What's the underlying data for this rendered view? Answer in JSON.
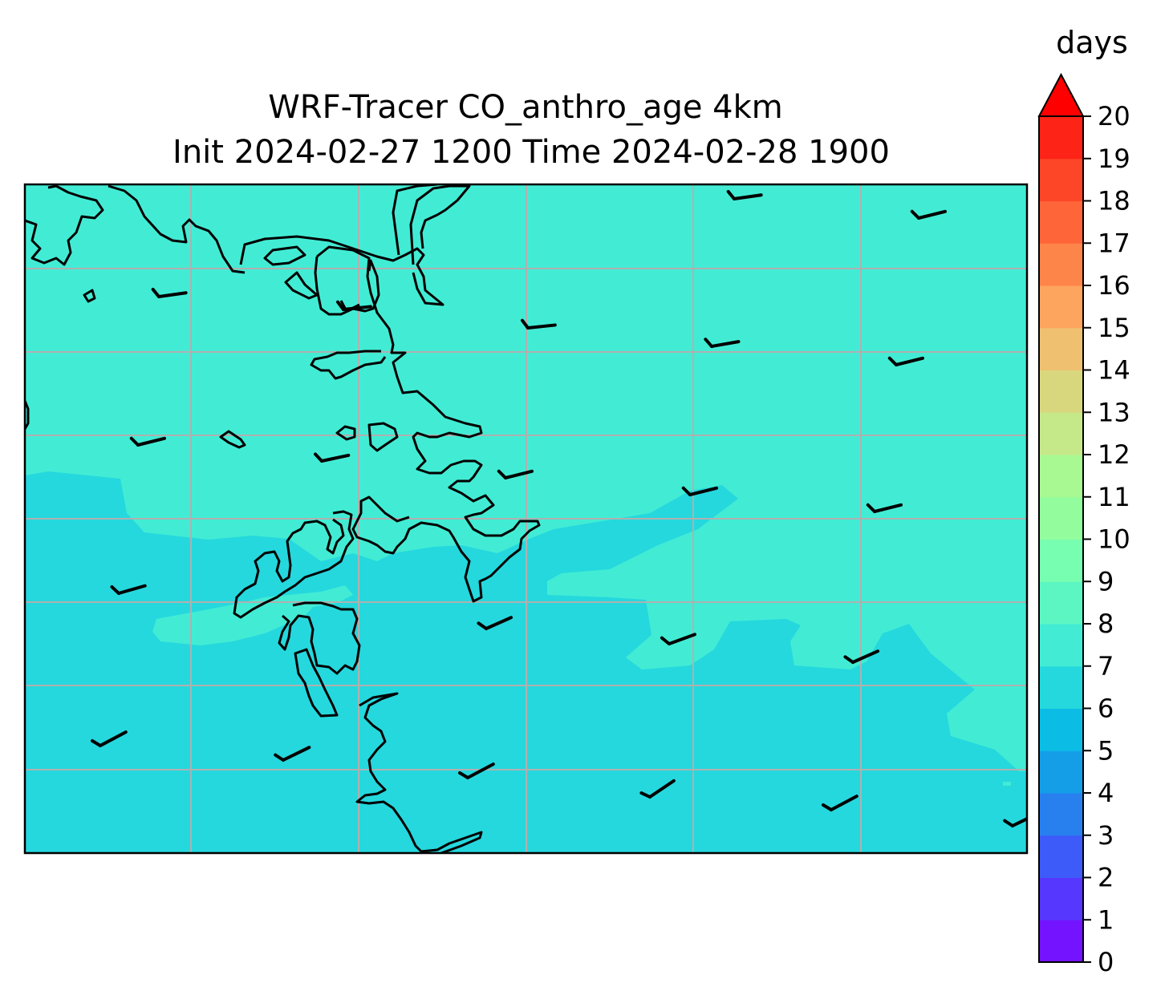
{
  "title": {
    "line1": "WRF-Tracer CO_anthro_age 4km",
    "line2": "Init 2024-02-27 1200 Time 2024-02-28 1900"
  },
  "colorbar": {
    "unit_label": "days",
    "min": 0,
    "max": 20,
    "extend": "max",
    "ticks": [
      "0",
      "1",
      "2",
      "3",
      "4",
      "5",
      "6",
      "7",
      "8",
      "9",
      "10",
      "11",
      "12",
      "13",
      "14",
      "15",
      "16",
      "17",
      "18",
      "19",
      "20"
    ],
    "colors": [
      "#7413ff",
      "#5637fe",
      "#3d5bf8",
      "#2880ef",
      "#149ee8",
      "#0bbde5",
      "#25d8dd",
      "#42ecd4",
      "#5cf6c3",
      "#78feb0",
      "#93fd9e",
      "#a9f992",
      "#c5e889",
      "#d9d77d",
      "#efc070",
      "#fda45e",
      "#fe854a",
      "#fe6539",
      "#fd4527",
      "#fd2316"
    ],
    "extend_color": "#fe0000"
  },
  "chart_data": {
    "type": "filled-contour map with wind barbs",
    "field": "CO_anthro_age",
    "units": "days",
    "levels": [
      0,
      1,
      2,
      3,
      4,
      5,
      6,
      7,
      8,
      9,
      10,
      11,
      12,
      13,
      14,
      15,
      16,
      17,
      18,
      19,
      20
    ],
    "visible_value_ranges": [
      "6-7 days (southern and western part)",
      "7-8 days (northern and eastern part)"
    ],
    "gridlines": true,
    "coastlines": true,
    "wind_barbs": "light, southwest to west winds (short barbs)"
  }
}
